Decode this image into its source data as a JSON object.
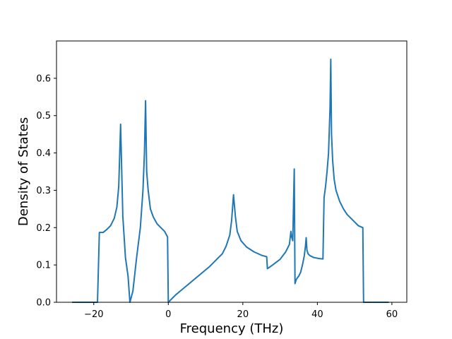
{
  "chart_data": {
    "type": "line",
    "title": "",
    "xlabel": "Frequency (THz)",
    "ylabel": "Density of States",
    "xlim": [
      -30,
      64
    ],
    "ylim": [
      0,
      0.7
    ],
    "grid": false,
    "line_color": "#1f77b4",
    "x_ticks": [
      -20,
      0,
      20,
      40,
      60
    ],
    "x_tick_labels": [
      "−20",
      "0",
      "20",
      "40",
      "60"
    ],
    "y_ticks": [
      0.0,
      0.1,
      0.2,
      0.3,
      0.4,
      0.5,
      0.6
    ],
    "y_tick_labels": [
      "0.0",
      "0.1",
      "0.2",
      "0.3",
      "0.4",
      "0.5",
      "0.6"
    ],
    "series": [
      {
        "x": [
          -25.8,
          -19.0,
          -18.5,
          -17.5,
          -16.5,
          -15.5,
          -14.5,
          -13.8,
          -13.3,
          -12.8,
          -12.2,
          -11.5,
          -10.8,
          -10.3,
          -9.5,
          -8.5,
          -7.5,
          -6.8,
          -6.4,
          -6.1,
          -5.8,
          -5.4,
          -4.8,
          -4.0,
          -3.0,
          -2.0,
          -1.0,
          -0.2,
          0.0,
          2.0,
          5.0,
          8.0,
          11.0,
          13.0,
          14.5,
          15.5,
          16.5,
          17.0,
          17.5,
          18.0,
          18.5,
          19.5,
          21.0,
          23.0,
          25.0,
          26.4,
          26.6,
          28.0,
          30.0,
          31.5,
          32.5,
          32.9,
          33.1,
          33.4,
          33.8,
          34.0,
          34.3,
          34.6,
          35.0,
          35.5,
          36.0,
          36.5,
          36.8,
          37.0,
          37.2,
          37.5,
          38.0,
          39.0,
          40.5,
          41.5,
          41.8,
          42.2,
          42.6,
          43.0,
          43.4,
          43.6,
          43.8,
          44.1,
          44.5,
          45.0,
          46.0,
          47.0,
          48.0,
          49.5,
          51.0,
          52.2,
          52.4,
          55.0,
          59.2
        ],
        "y": [
          0.0,
          0.0,
          0.187,
          0.187,
          0.195,
          0.205,
          0.225,
          0.255,
          0.31,
          0.477,
          0.23,
          0.12,
          0.07,
          0.0,
          0.03,
          0.12,
          0.2,
          0.3,
          0.4,
          0.54,
          0.35,
          0.3,
          0.25,
          0.228,
          0.21,
          0.2,
          0.19,
          0.175,
          0.0,
          0.02,
          0.045,
          0.07,
          0.095,
          0.115,
          0.13,
          0.15,
          0.18,
          0.22,
          0.288,
          0.23,
          0.19,
          0.165,
          0.148,
          0.135,
          0.126,
          0.122,
          0.09,
          0.1,
          0.115,
          0.135,
          0.155,
          0.19,
          0.175,
          0.165,
          0.357,
          0.05,
          0.06,
          0.065,
          0.07,
          0.08,
          0.1,
          0.125,
          0.15,
          0.173,
          0.14,
          0.13,
          0.125,
          0.12,
          0.117,
          0.116,
          0.28,
          0.31,
          0.35,
          0.4,
          0.52,
          0.651,
          0.45,
          0.38,
          0.33,
          0.3,
          0.27,
          0.25,
          0.235,
          0.22,
          0.205,
          0.2,
          0.0,
          0.0,
          0.0
        ]
      }
    ]
  }
}
